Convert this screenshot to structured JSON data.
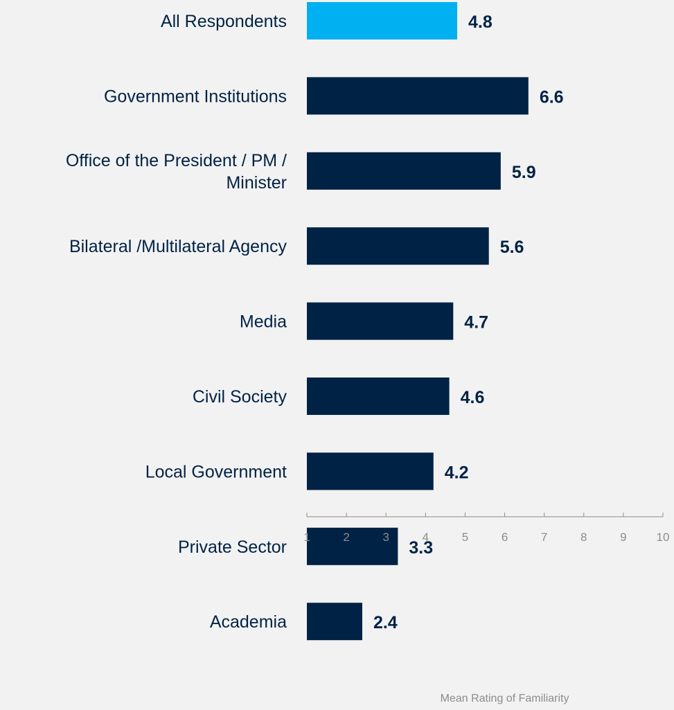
{
  "chart_data": {
    "type": "bar",
    "orientation": "horizontal",
    "categories": [
      "All Respondents",
      "Government Institutions",
      "Office of the President / PM / Minister",
      "Bilateral /Multilateral Agency",
      "Media",
      "Civil Society",
      "Local Government",
      "Private Sector",
      "Academia"
    ],
    "values": [
      4.8,
      6.6,
      5.9,
      5.6,
      4.7,
      4.6,
      4.2,
      3.3,
      2.4
    ],
    "data_labels": [
      "4.8",
      "6.6",
      "5.9",
      "5.6",
      "4.7",
      "4.6",
      "4.2",
      "3.3",
      "2.4"
    ],
    "xlabel": "Mean Rating of Familiarity",
    "ylabel": "",
    "xlim": [
      1,
      10
    ],
    "x_ticks": [
      "1",
      "2",
      "3",
      "4",
      "5",
      "6",
      "7",
      "8",
      "9",
      "10"
    ],
    "grid": false,
    "legend": "none",
    "colors": {
      "highlight": "#00b0f0",
      "bar": "#002245",
      "category_text": "#002245",
      "data_label": "#002245",
      "axis": "#8c8c8c",
      "tick_text": "#8c8c8c",
      "background": "#f2f2f2"
    }
  }
}
